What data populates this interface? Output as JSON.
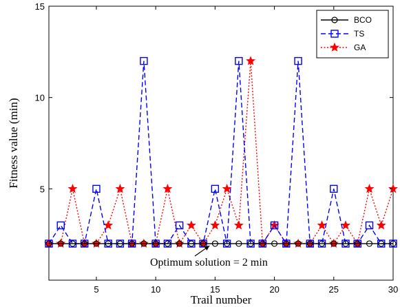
{
  "chart_data": {
    "type": "line",
    "xlabel": "Trail number",
    "ylabel": "Fitness value (min)",
    "xlim": [
      1,
      30
    ],
    "ylim": [
      0,
      15
    ],
    "x_ticks": [
      5,
      10,
      15,
      20,
      25,
      30
    ],
    "y_ticks": [
      5,
      10,
      15
    ],
    "grid": false,
    "legend_position": "top-right",
    "x": [
      1,
      2,
      3,
      4,
      5,
      6,
      7,
      8,
      9,
      10,
      11,
      12,
      13,
      14,
      15,
      16,
      17,
      18,
      19,
      20,
      21,
      22,
      23,
      24,
      25,
      26,
      27,
      28,
      29,
      30
    ],
    "series": [
      {
        "name": "BCO",
        "color": "#000000",
        "line_style": "solid",
        "marker": "circle",
        "values": [
          2,
          2,
          2,
          2,
          2,
          2,
          2,
          2,
          2,
          2,
          2,
          2,
          2,
          2,
          2,
          2,
          2,
          2,
          2,
          2,
          2,
          2,
          2,
          2,
          2,
          2,
          2,
          2,
          2,
          2
        ]
      },
      {
        "name": "TS",
        "color": "#0000ff",
        "line_style": "dashed",
        "marker": "square",
        "values": [
          2,
          3,
          2,
          2,
          5,
          2,
          2,
          2,
          12,
          2,
          2,
          3,
          2,
          2,
          5,
          2,
          12,
          2,
          2,
          3,
          2,
          12,
          2,
          2,
          5,
          2,
          2,
          3,
          2,
          2
        ]
      },
      {
        "name": "GA",
        "color": "#ff0000",
        "line_style": "dotted",
        "marker": "star",
        "values": [
          2,
          2,
          5,
          2,
          2,
          3,
          5,
          2,
          2,
          2,
          5,
          2,
          3,
          2,
          3,
          5,
          3,
          12,
          2,
          3,
          2,
          2,
          2,
          3,
          2,
          3,
          2,
          5,
          3,
          5
        ]
      }
    ],
    "annotations": [
      {
        "text": "Optimum solution = 2 min",
        "x": 14,
        "y": 2
      }
    ]
  }
}
